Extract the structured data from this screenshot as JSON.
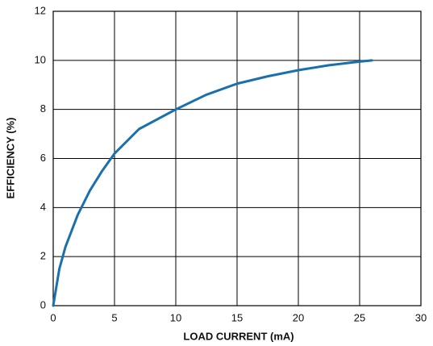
{
  "chart_data": {
    "type": "line",
    "x_label": "LOAD CURRENT  (mA)",
    "y_label": "EFFICIENCY (%)",
    "x": [
      0,
      0.5,
      1,
      2,
      2.5,
      3,
      4,
      5,
      7,
      10,
      12.5,
      15,
      17.5,
      20,
      22.5,
      25,
      26
    ],
    "series": [
      {
        "color": "#1a70ad",
        "values": [
          0,
          1.5,
          2.4,
          3.7,
          4.2,
          4.7,
          5.5,
          6.2,
          7.2,
          8.0,
          8.6,
          9.05,
          9.35,
          9.6,
          9.8,
          9.95,
          10.0
        ]
      }
    ],
    "xlim": [
      0,
      30
    ],
    "xticks": [
      0,
      5,
      10,
      15,
      20,
      25,
      30
    ],
    "ylim": [
      0,
      12
    ],
    "yticks": [
      0,
      2,
      4,
      6,
      8,
      10,
      12
    ],
    "grid": true
  }
}
